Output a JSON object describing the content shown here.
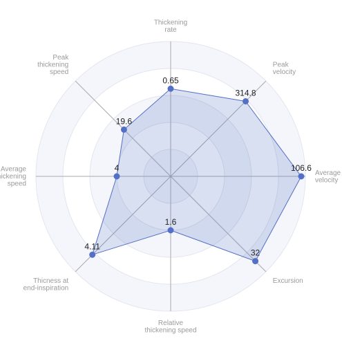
{
  "chart_data": {
    "type": "radar",
    "axes": [
      {
        "label_lines": [
          "Thickening",
          "rate"
        ],
        "value": 0.65,
        "value_text": "0.65",
        "max": 1.0
      },
      {
        "label_lines": [
          "Peak",
          "velocity"
        ],
        "value": 314.8,
        "value_text": "314.8",
        "max": 400
      },
      {
        "label_lines": [
          "Average",
          "velocity"
        ],
        "value": 106.6,
        "value_text": "106.6",
        "max": 110
      },
      {
        "label_lines": [
          "Excursion"
        ],
        "value": 32,
        "value_text": "32",
        "max": 36
      },
      {
        "label_lines": [
          "Relative",
          "thickening speed"
        ],
        "value": 1.6,
        "value_text": "1.6",
        "max": 4
      },
      {
        "label_lines": [
          "Thicness at",
          "end-inspiration"
        ],
        "value": 4.11,
        "value_text": "4.11",
        "max": 5
      },
      {
        "label_lines": [
          "Average",
          "thickening",
          "speed"
        ],
        "value": 4,
        "value_text": "4",
        "max": 10
      },
      {
        "label_lines": [
          "Peak",
          "thickening",
          "speed"
        ],
        "value": 19.6,
        "value_text": "19.6",
        "max": 40
      }
    ],
    "rings": 5,
    "colors": {
      "series_line": "#5470c6",
      "series_fill": "rgba(84,112,198,0.22)",
      "point": "#5470c6",
      "ring_bands": [
        "#ffffff",
        "#f5f6fb"
      ],
      "ring_line": "#e3e5ee",
      "axis_line": "#aaaaaa",
      "axis_label": "#9a9a9a",
      "value_label": "#222222"
    }
  }
}
